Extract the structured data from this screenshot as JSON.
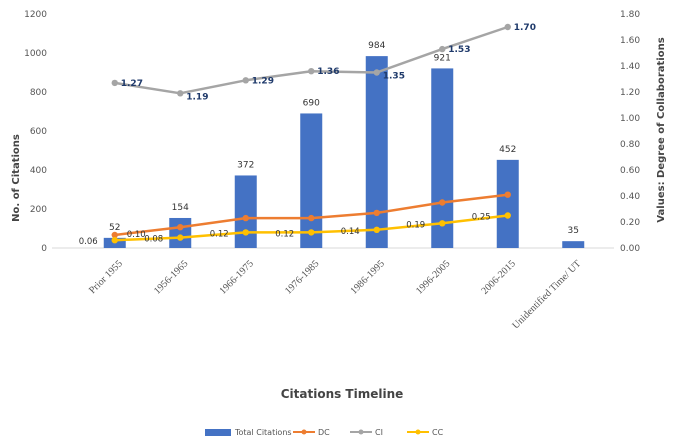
{
  "chart_data": {
    "type": "bar",
    "title": "",
    "categories": [
      "Prior 1955",
      "1956-1965",
      "1966-1975",
      "1976-1985",
      "1986-1995",
      "1996-2005",
      "2006-2015",
      "Unidentified Time/ UT"
    ],
    "xlabel": "Citations Timeline",
    "ylabel": "No. of Citations",
    "y2label": "Values: Degree of Collaborations",
    "ylim": [
      0,
      1200
    ],
    "yticks": [
      "0",
      "200",
      "400",
      "600",
      "800",
      "1000",
      "1200"
    ],
    "y2lim": [
      0,
      1.8
    ],
    "y2ticks": [
      "0.00",
      "0.20",
      "0.40",
      "0.60",
      "0.80",
      "1.00",
      "1.20",
      "1.40",
      "1.60",
      "1.80"
    ],
    "legend_position": "bottom",
    "grid": false,
    "series": [
      {
        "name": "Total Citations",
        "type": "bar",
        "axis": "left",
        "color": "#4472c4",
        "values": [
          52,
          154,
          372,
          690,
          984,
          921,
          452,
          35
        ],
        "labels": [
          "52",
          "154",
          "372",
          "690",
          "984",
          "921",
          "452",
          "35"
        ]
      },
      {
        "name": "DC",
        "type": "line",
        "axis": "right",
        "color": "#ed7d31",
        "values": [
          0.1,
          0.16,
          0.23,
          0.23,
          0.27,
          0.35,
          0.41,
          null
        ],
        "labels": [
          "0.10",
          "",
          "",
          "",
          "",
          "",
          "",
          ""
        ]
      },
      {
        "name": "CI",
        "type": "line",
        "axis": "right",
        "color": "#a5a5a5",
        "values": [
          1.27,
          1.19,
          1.29,
          1.36,
          1.35,
          1.53,
          1.7,
          null
        ],
        "labels": [
          "1.27",
          "1.19",
          "1.29",
          "1.36",
          "1.35",
          "1.53",
          "1.70",
          ""
        ]
      },
      {
        "name": "CC",
        "type": "line",
        "axis": "right",
        "color": "#ffc000",
        "values": [
          0.06,
          0.08,
          0.12,
          0.12,
          0.14,
          0.19,
          0.25,
          null
        ],
        "labels": [
          "0.06",
          "0.08",
          "0.12",
          "0.12",
          "0.14",
          "0.19",
          "0.25",
          ""
        ]
      }
    ]
  }
}
